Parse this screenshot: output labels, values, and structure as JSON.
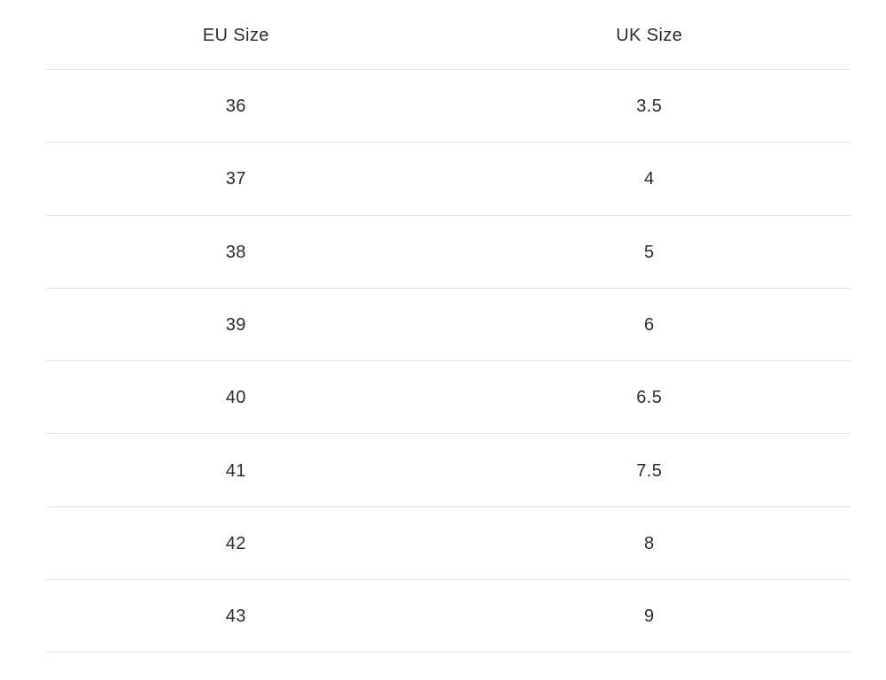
{
  "page": {
    "background": "#ffffff"
  },
  "table": {
    "columns": [
      {
        "label": "EU Size"
      },
      {
        "label": "UK Size"
      }
    ],
    "rows": [
      {
        "eu": "36",
        "uk": "3.5"
      },
      {
        "eu": "37",
        "uk": "4"
      },
      {
        "eu": "38",
        "uk": "5"
      },
      {
        "eu": "39",
        "uk": "6"
      },
      {
        "eu": "40",
        "uk": "6.5"
      },
      {
        "eu": "41",
        "uk": "7.5"
      },
      {
        "eu": "42",
        "uk": "8"
      },
      {
        "eu": "43",
        "uk": "9"
      }
    ],
    "colors": {
      "text": "#2d2d2d",
      "divider": "#e2e2e2"
    }
  },
  "chart_data": {
    "type": "table",
    "title": "",
    "columns": [
      "EU Size",
      "UK Size"
    ],
    "rows": [
      [
        "36",
        "3.5"
      ],
      [
        "37",
        "4"
      ],
      [
        "38",
        "5"
      ],
      [
        "39",
        "6"
      ],
      [
        "40",
        "6.5"
      ],
      [
        "41",
        "7.5"
      ],
      [
        "42",
        "8"
      ],
      [
        "43",
        "9"
      ]
    ]
  }
}
